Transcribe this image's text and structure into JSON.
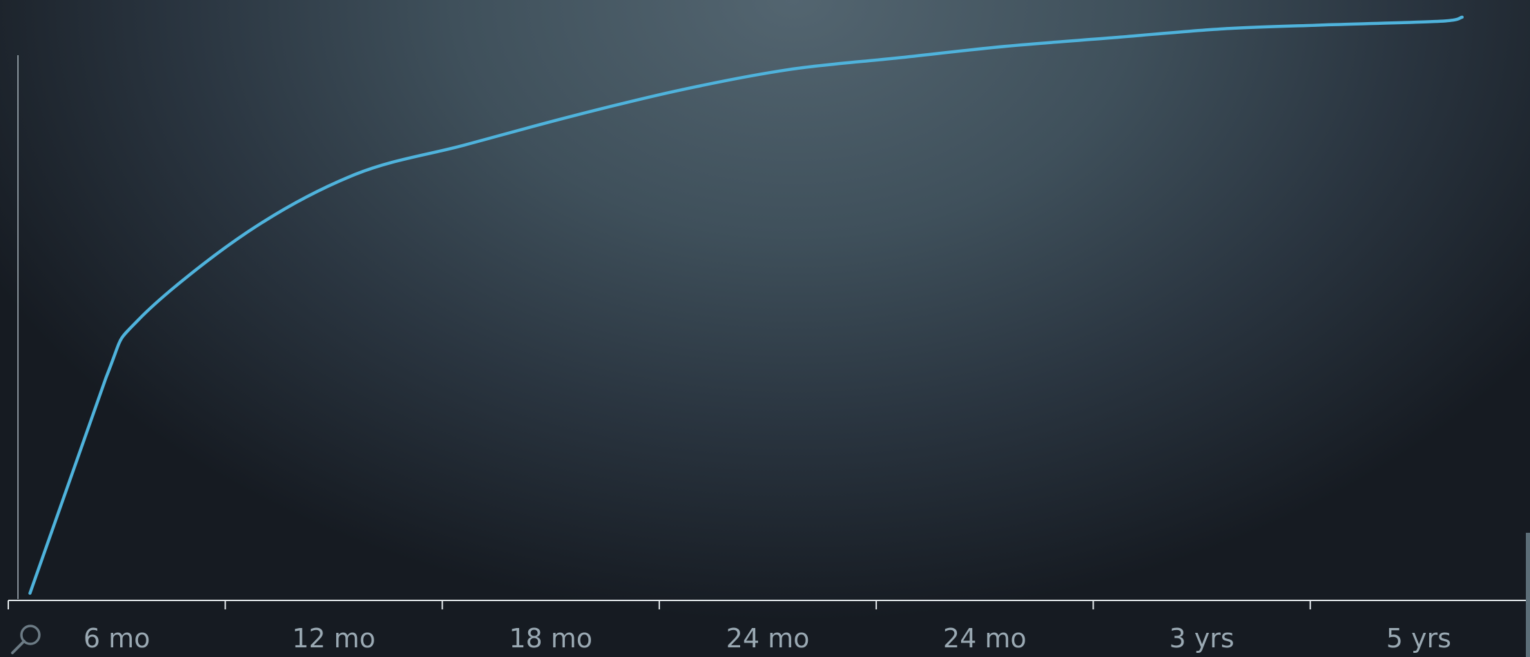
{
  "chart_data": {
    "type": "line",
    "title": "",
    "xlabel": "",
    "ylabel": "",
    "categories": [
      "6 mo",
      "12 mo",
      "18 mo",
      "24 mo",
      "24 mo",
      "3 yrs",
      "5 yrs"
    ],
    "x": [
      0,
      0.35,
      0.5,
      1,
      1.5,
      2,
      2.5,
      3,
      3.5,
      4,
      4.5,
      5,
      5.5,
      6,
      6.5,
      6.6
    ],
    "series": [
      {
        "values": [
          1,
          38,
          48,
          63,
          73,
          78,
          83,
          87.5,
          91,
          93,
          95,
          96.5,
          98,
          98.7,
          99.3,
          100
        ]
      }
    ],
    "xlim": [
      -0.1,
      6.9
    ],
    "ylim": [
      0,
      102
    ],
    "grid": false,
    "legend": "none",
    "line_color": "#4fb3dc"
  },
  "icons": {
    "zoom": "magnifier-icon"
  }
}
